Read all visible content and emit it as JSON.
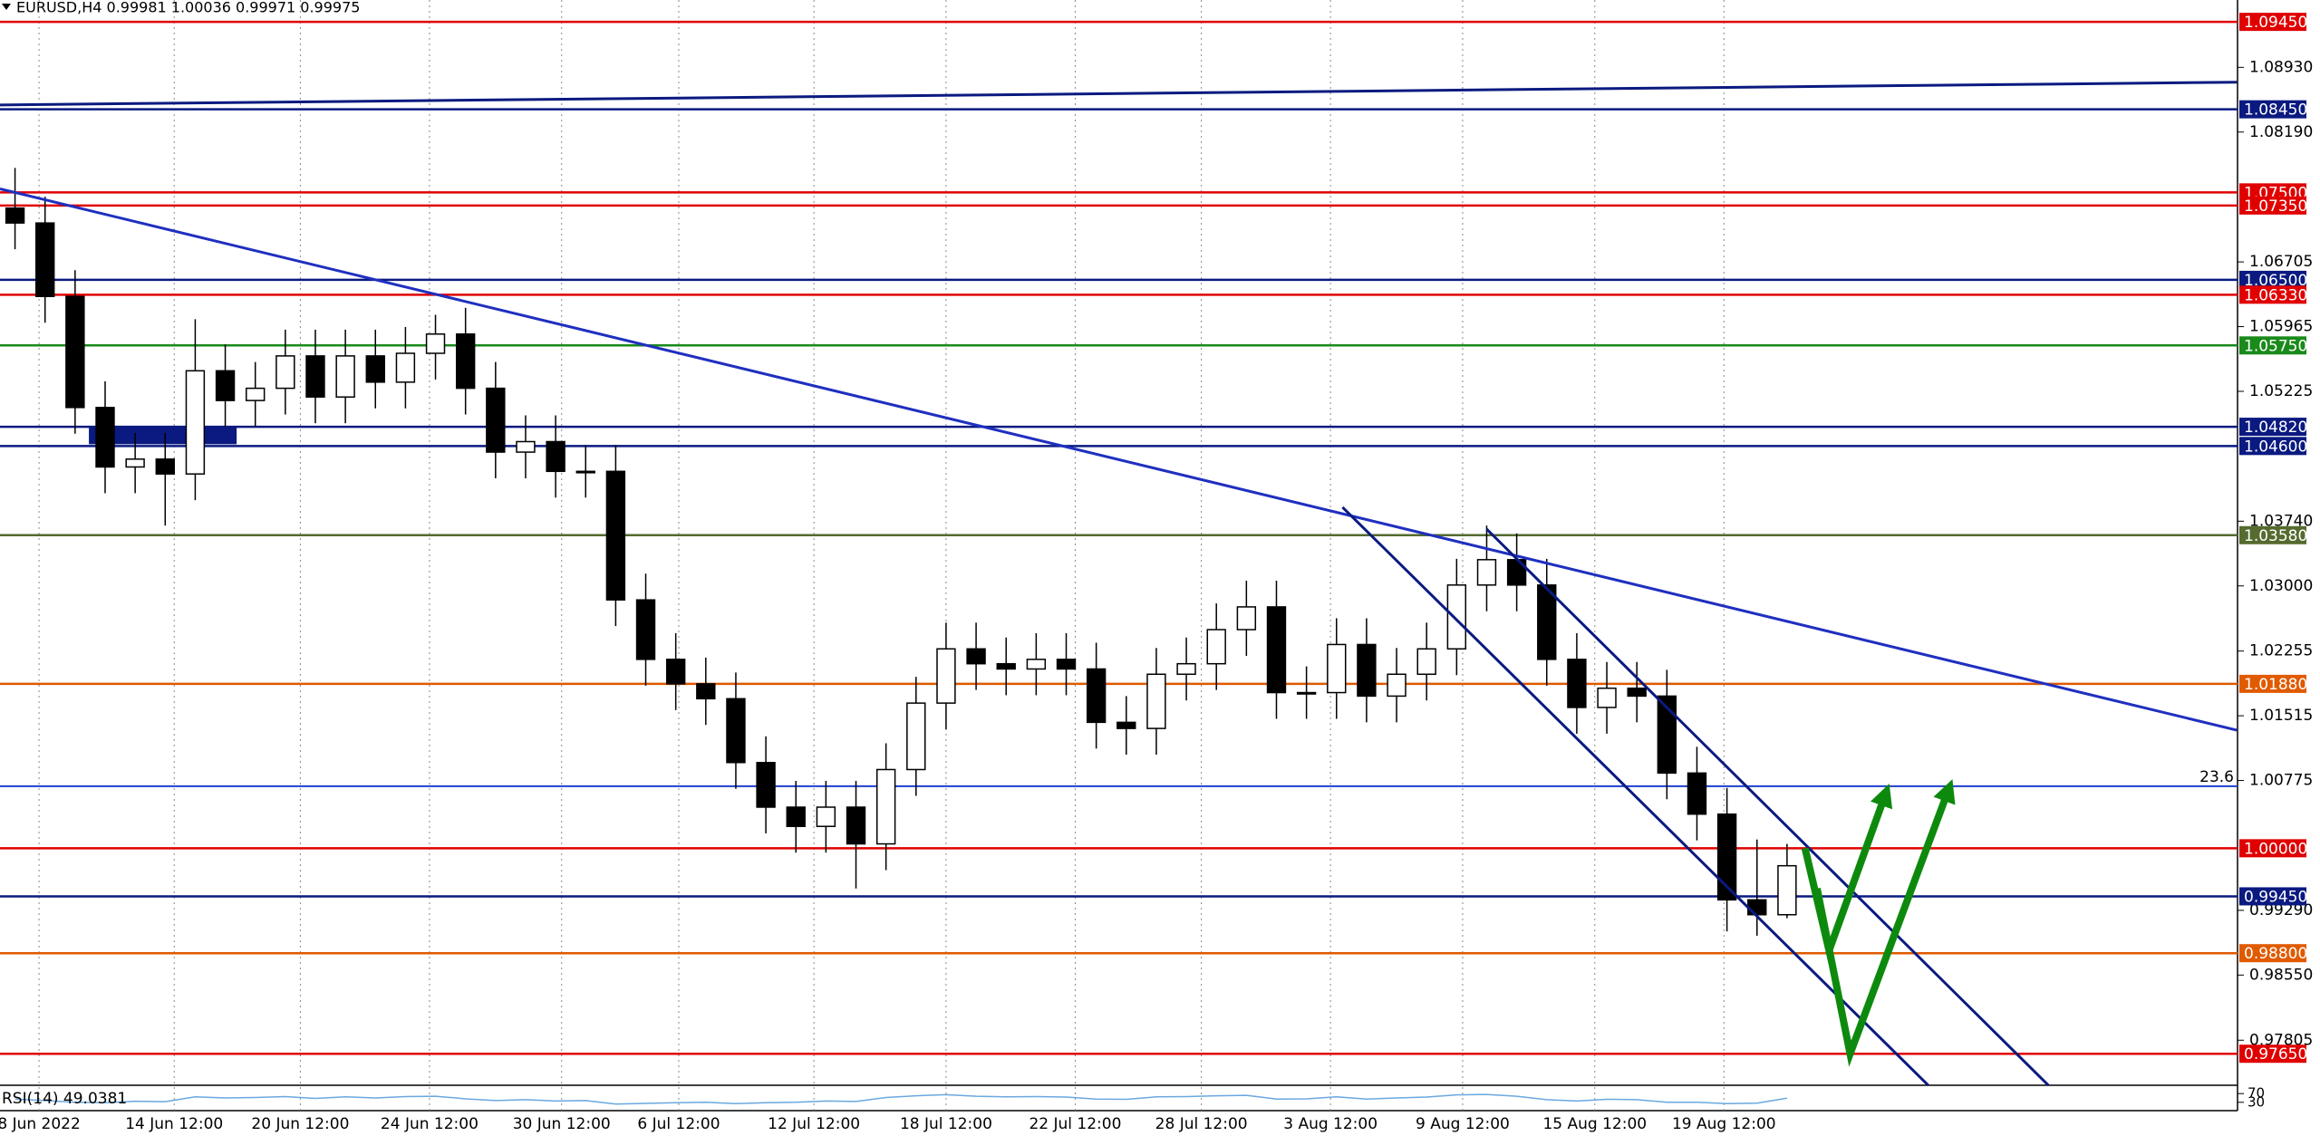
{
  "header": {
    "title": "EURUSD,H4  0.99981 1.00036 0.99971 0.99975"
  },
  "chart_data": {
    "type": "candlestick",
    "xlim": [
      0,
      74.5
    ],
    "ylim": [
      0.973,
      1.097
    ],
    "grid": true,
    "up_color": "#ffffff",
    "down_color": "#000000",
    "xticks": [
      {
        "value": 1.3,
        "label": "8 Jun 2022"
      },
      {
        "value": 5.8,
        "label": "14 Jun 12:00"
      },
      {
        "value": 10.0,
        "label": "20 Jun 12:00"
      },
      {
        "value": 14.3,
        "label": "24 Jun 12:00"
      },
      {
        "value": 18.7,
        "label": "30 Jun 12:00"
      },
      {
        "value": 22.6,
        "label": "6 Jul 12:00"
      },
      {
        "value": 27.1,
        "label": "12 Jul 12:00"
      },
      {
        "value": 31.5,
        "label": "18 Jul 12:00"
      },
      {
        "value": 35.8,
        "label": "22 Jul 12:00"
      },
      {
        "value": 40.0,
        "label": "28 Jul 12:00"
      },
      {
        "value": 44.3,
        "label": "3 Aug 12:00"
      },
      {
        "value": 48.7,
        "label": "9 Aug 12:00"
      },
      {
        "value": 53.1,
        "label": "15 Aug 12:00"
      },
      {
        "value": 57.4,
        "label": "19 Aug 12:00"
      }
    ],
    "yticks": [
      {
        "value": 1.0893,
        "label": "1.08930"
      },
      {
        "value": 1.0819,
        "label": "1.08190"
      },
      {
        "value": 1.06705,
        "label": "1.06705"
      },
      {
        "value": 1.05965,
        "label": "1.05965"
      },
      {
        "value": 1.05225,
        "label": "1.05225"
      },
      {
        "value": 1.0374,
        "label": "1.03740"
      },
      {
        "value": 1.03,
        "label": "1.03000"
      },
      {
        "value": 1.02255,
        "label": "1.02255"
      },
      {
        "value": 1.01515,
        "label": "1.01515"
      },
      {
        "value": 1.00775,
        "label": "1.00775"
      },
      {
        "value": 0.9929,
        "label": "0.99290"
      },
      {
        "value": 0.9855,
        "label": "0.98550"
      },
      {
        "value": 0.97805,
        "label": "0.97805"
      }
    ],
    "open": [
      1.0732,
      1.0715,
      1.0631,
      1.0504,
      1.0436,
      1.0445,
      1.0428,
      1.0546,
      1.0512,
      1.0526,
      1.0563,
      1.0516,
      1.0563,
      1.0533,
      1.0566,
      1.0588,
      1.0526,
      1.0453,
      1.0465,
      1.0431,
      1.0431,
      1.0284,
      1.0216,
      1.0188,
      1.0171,
      1.0098,
      1.0047,
      1.0025,
      1.0047,
      1.0005,
      1.009,
      1.0166,
      1.0228,
      1.0211,
      1.0205,
      1.0216,
      1.0205,
      1.0144,
      1.0137,
      1.0199,
      1.0211,
      1.025,
      1.0276,
      1.0178,
      1.0178,
      1.0233,
      1.0174,
      1.0199,
      1.0228,
      1.0301,
      1.033,
      1.0301,
      1.0216,
      1.0161,
      1.0183,
      1.0174,
      1.0086,
      1.0039,
      0.9941,
      0.9924
    ],
    "high": [
      1.0778,
      1.0745,
      1.0661,
      1.0534,
      1.0475,
      1.0475,
      1.0605,
      1.0576,
      1.0556,
      1.0593,
      1.0593,
      1.0593,
      1.0593,
      1.0596,
      1.061,
      1.0618,
      1.0556,
      1.0495,
      1.0495,
      1.0461,
      1.0461,
      1.0314,
      1.0246,
      1.0218,
      1.0201,
      1.0128,
      1.0077,
      1.0077,
      1.0077,
      1.012,
      1.0196,
      1.0258,
      1.0258,
      1.0241,
      1.0246,
      1.0246,
      1.0235,
      1.0174,
      1.0229,
      1.0241,
      1.028,
      1.0306,
      1.0306,
      1.0208,
      1.0263,
      1.0263,
      1.0229,
      1.0258,
      1.0331,
      1.0369,
      1.036,
      1.0331,
      1.0246,
      1.0213,
      1.0213,
      1.0204,
      1.0116,
      1.0069,
      1.001,
      1.0005
    ],
    "low": [
      1.0685,
      1.0601,
      1.0474,
      1.0406,
      1.0406,
      1.0369,
      1.0398,
      1.0482,
      1.0482,
      1.0496,
      1.0486,
      1.0486,
      1.0503,
      1.0503,
      1.0536,
      1.0496,
      1.0423,
      1.0423,
      1.0401,
      1.0401,
      1.0254,
      1.0186,
      1.0158,
      1.0141,
      1.0068,
      1.0017,
      0.9995,
      0.9995,
      0.9954,
      0.9975,
      1.006,
      1.0136,
      1.0181,
      1.0175,
      1.0175,
      1.0175,
      1.0114,
      1.0107,
      1.0107,
      1.0169,
      1.0181,
      1.022,
      1.0148,
      1.0148,
      1.0148,
      1.0144,
      1.0144,
      1.0169,
      1.0198,
      1.0271,
      1.0271,
      1.0186,
      1.0131,
      1.0131,
      1.0144,
      1.0056,
      1.0009,
      0.9905,
      0.99,
      0.992
    ],
    "close": [
      1.0715,
      1.0631,
      1.0504,
      1.0436,
      1.0445,
      1.0428,
      1.0546,
      1.0512,
      1.0526,
      1.0563,
      1.0516,
      1.0563,
      1.0533,
      1.0566,
      1.0588,
      1.0526,
      1.0453,
      1.0465,
      1.0431,
      1.0431,
      1.0284,
      1.0216,
      1.0188,
      1.0171,
      1.0098,
      1.0047,
      1.0025,
      1.0047,
      1.0005,
      1.009,
      1.0166,
      1.0228,
      1.0211,
      1.0205,
      1.0216,
      1.0205,
      1.0144,
      1.0137,
      1.0199,
      1.0211,
      1.025,
      1.0276,
      1.0178,
      1.0178,
      1.0233,
      1.0174,
      1.0199,
      1.0228,
      1.0301,
      1.033,
      1.0301,
      1.0216,
      1.0161,
      1.0183,
      1.0174,
      1.0086,
      1.0039,
      0.9941,
      0.9924,
      0.998
    ],
    "levels": [
      {
        "value": 1.0945,
        "label": "1.09450",
        "color": "#e00000"
      },
      {
        "value": 1.0845,
        "label": "1.08450",
        "color": "#0a1a80"
      },
      {
        "value": 1.075,
        "label": "1.07500",
        "color": "#e00000"
      },
      {
        "value": 1.0735,
        "label": "1.07350",
        "color": "#e00000"
      },
      {
        "value": 1.065,
        "label": "1.06500",
        "color": "#0a1a80"
      },
      {
        "value": 1.0633,
        "label": "1.06330",
        "color": "#e00000"
      },
      {
        "value": 1.0575,
        "label": "1.05750",
        "color": "#1a8a1a"
      },
      {
        "value": 1.0482,
        "label": "1.04820",
        "color": "#0a1a80"
      },
      {
        "value": 1.046,
        "label": "1.04600",
        "color": "#0a1a80"
      },
      {
        "value": 1.0358,
        "label": "1.03580",
        "color": "#556b2f"
      },
      {
        "value": 1.0188,
        "label": "1.01880",
        "color": "#e05a00"
      },
      {
        "value": 1.0,
        "label": "1.00000",
        "color": "#e00000"
      },
      {
        "value": 0.9945,
        "label": "0.99450",
        "color": "#0a1a80"
      },
      {
        "value": 0.988,
        "label": "0.98800",
        "color": "#e05a00"
      },
      {
        "value": 0.9765,
        "label": "0.97650",
        "color": "#e00000"
      }
    ],
    "fib": {
      "value": 1.0071,
      "label": "23.6",
      "color": "#1f3fd0"
    },
    "trendlines": [
      {
        "x": [
          0,
          74.48
        ],
        "y": [
          1.085,
          1.0876
        ],
        "color": "#0a1a80"
      },
      {
        "x": [
          0,
          74.48
        ],
        "y": [
          1.0754,
          1.0135
        ],
        "color": "#1f2fc0"
      },
      {
        "x": [
          44.7,
          64.2
        ],
        "y": [
          1.039,
          0.9729
        ],
        "color": "#0a1a80"
      },
      {
        "x": [
          49.5,
          68.2
        ],
        "y": [
          1.0365,
          0.9729
        ],
        "color": "#0a1a80"
      }
    ],
    "zones": [
      {
        "x": [
          2.96,
          7.88
        ],
        "y": [
          1.0482,
          1.0462
        ],
        "color": "#0a1a80"
      }
    ],
    "arrows": [
      {
        "x": [
          60.1,
          60.9,
          62.8
        ],
        "y": [
          1.0,
          0.9883,
          1.0064
        ],
        "color": "#0d8a0d"
      },
      {
        "x": [
          60.5,
          61.6,
          64.9
        ],
        "y": [
          0.9954,
          0.9765,
          1.0069
        ],
        "color": "#0d8a0d"
      }
    ],
    "rsi": {
      "label": "RSI(14) 49.0381",
      "color": "#6aa8e0",
      "ylim": [
        0,
        100
      ],
      "yticks": [
        70,
        30
      ],
      "values": [
        45,
        38,
        30,
        28,
        35,
        33,
        55,
        50,
        52,
        56,
        48,
        55,
        50,
        56,
        58,
        46,
        38,
        42,
        36,
        38,
        22,
        25,
        28,
        30,
        24,
        28,
        30,
        36,
        34,
        52,
        60,
        65,
        58,
        55,
        56,
        54,
        45,
        44,
        55,
        56,
        60,
        62,
        45,
        46,
        55,
        45,
        50,
        54,
        64,
        66,
        58,
        42,
        36,
        44,
        42,
        30,
        30,
        24,
        26,
        49
      ]
    }
  }
}
